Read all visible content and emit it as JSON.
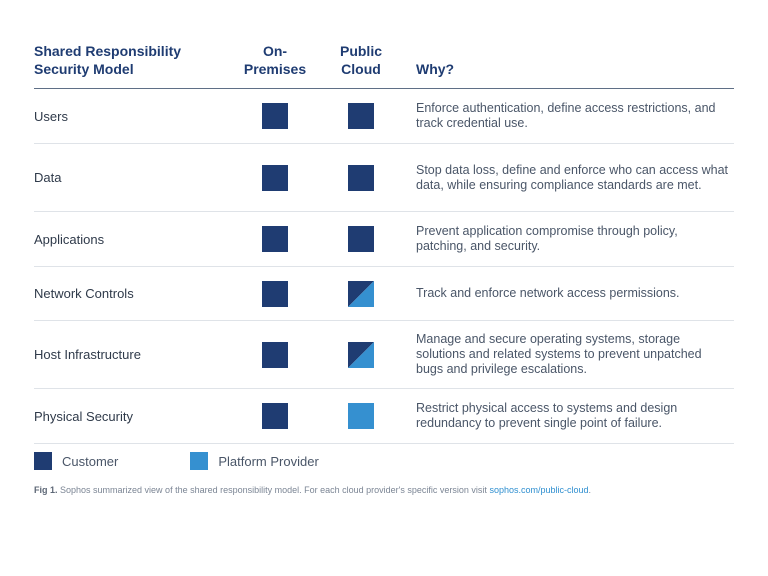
{
  "header": {
    "title_line1": "Shared Responsibility",
    "title_line2": "Security Model",
    "col1_line1": "On-",
    "col1_line2": "Premises",
    "col2_line1": "Public",
    "col2_line2": "Cloud",
    "why": "Why?"
  },
  "colors": {
    "customer": "#1f3c72",
    "platform_provider": "#3590d0"
  },
  "rows": [
    {
      "label": "Users",
      "on_premises": "customer",
      "public_cloud": "customer",
      "why": "Enforce authentication, define access restrictions, and track credential use."
    },
    {
      "label": "Data",
      "on_premises": "customer",
      "public_cloud": "customer",
      "why": "Stop data loss, define and enforce who can access what data, while ensuring compliance standards are met."
    },
    {
      "label": "Applications",
      "on_premises": "customer",
      "public_cloud": "customer",
      "why": "Prevent application compromise through policy, patching, and security."
    },
    {
      "label": "Network Controls",
      "on_premises": "customer",
      "public_cloud": "shared",
      "why": "Track and enforce network access permissions."
    },
    {
      "label": "Host Infrastructure",
      "on_premises": "customer",
      "public_cloud": "shared",
      "why": "Manage and secure operating systems, storage solutions and related systems to prevent unpatched bugs and privilege escalations."
    },
    {
      "label": "Physical Security",
      "on_premises": "customer",
      "public_cloud": "platform_provider",
      "why": "Restrict physical access to systems and design redundancy to prevent single point of failure."
    }
  ],
  "legend": {
    "customer": "Customer",
    "platform_provider": "Platform Provider"
  },
  "caption": {
    "fig": "Fig 1.",
    "text": " Sophos summarized view of the shared responsibility model. For each cloud provider's specific version visit ",
    "link": "sophos.com/public-cloud",
    "end": "."
  }
}
